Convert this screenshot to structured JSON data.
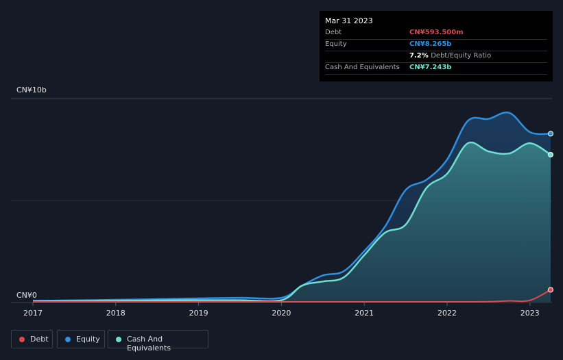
{
  "tooltip": {
    "date": "Mar 31 2023",
    "debt_label": "Debt",
    "debt_value": "CN¥593.500m",
    "equity_label": "Equity",
    "equity_value": "CN¥8.265b",
    "ratio_value": "7.2%",
    "ratio_label": "Debt/Equity Ratio",
    "cash_label": "Cash And Equivalents",
    "cash_value": "CN¥7.243b"
  },
  "legend": {
    "debt": "Debt",
    "equity": "Equity",
    "cash": "Cash And Equivalents"
  },
  "colors": {
    "debt": "#e0474f",
    "equity": "#2f8fe0",
    "cash": "#6fe0d0",
    "background": "#151b26"
  },
  "chart_data": {
    "type": "area",
    "unit": "CN¥b",
    "y_tick_labels": [
      "CN¥0",
      "CN¥10b"
    ],
    "ylim": [
      0,
      10
    ],
    "x_tick_labels": [
      "2017",
      "2018",
      "2019",
      "2020",
      "2021",
      "2022",
      "2023"
    ],
    "xlim": [
      2017.0,
      2023.25
    ],
    "series": [
      {
        "name": "Equity",
        "x": [
          2017.0,
          2017.5,
          2018.0,
          2018.5,
          2019.0,
          2019.5,
          2020.0,
          2020.25,
          2020.5,
          2020.75,
          2021.0,
          2021.25,
          2021.5,
          2021.75,
          2022.0,
          2022.25,
          2022.5,
          2022.75,
          2023.0,
          2023.25
        ],
        "values": [
          0.05,
          0.07,
          0.1,
          0.13,
          0.17,
          0.2,
          0.2,
          0.8,
          1.3,
          1.5,
          2.5,
          3.7,
          5.5,
          6.0,
          7.0,
          8.9,
          9.0,
          9.3,
          8.35,
          8.27
        ]
      },
      {
        "name": "Cash And Equivalents",
        "x": [
          2017.0,
          2017.5,
          2018.0,
          2018.5,
          2019.0,
          2019.5,
          2020.0,
          2020.25,
          2020.5,
          2020.75,
          2021.0,
          2021.25,
          2021.5,
          2021.75,
          2022.0,
          2022.25,
          2022.5,
          2022.75,
          2023.0,
          2023.25
        ],
        "values": [
          0.03,
          0.04,
          0.05,
          0.07,
          0.08,
          0.08,
          0.08,
          0.8,
          1.0,
          1.2,
          2.3,
          3.4,
          3.8,
          5.6,
          6.3,
          7.8,
          7.4,
          7.3,
          7.8,
          7.24
        ]
      },
      {
        "name": "Debt",
        "x": [
          2017.0,
          2018.0,
          2019.0,
          2020.0,
          2021.0,
          2022.0,
          2022.5,
          2022.75,
          2023.0,
          2023.25
        ],
        "values": [
          0.0,
          0.0,
          0.0,
          0.0,
          0.0,
          0.0,
          0.01,
          0.05,
          0.07,
          0.59
        ]
      }
    ]
  }
}
